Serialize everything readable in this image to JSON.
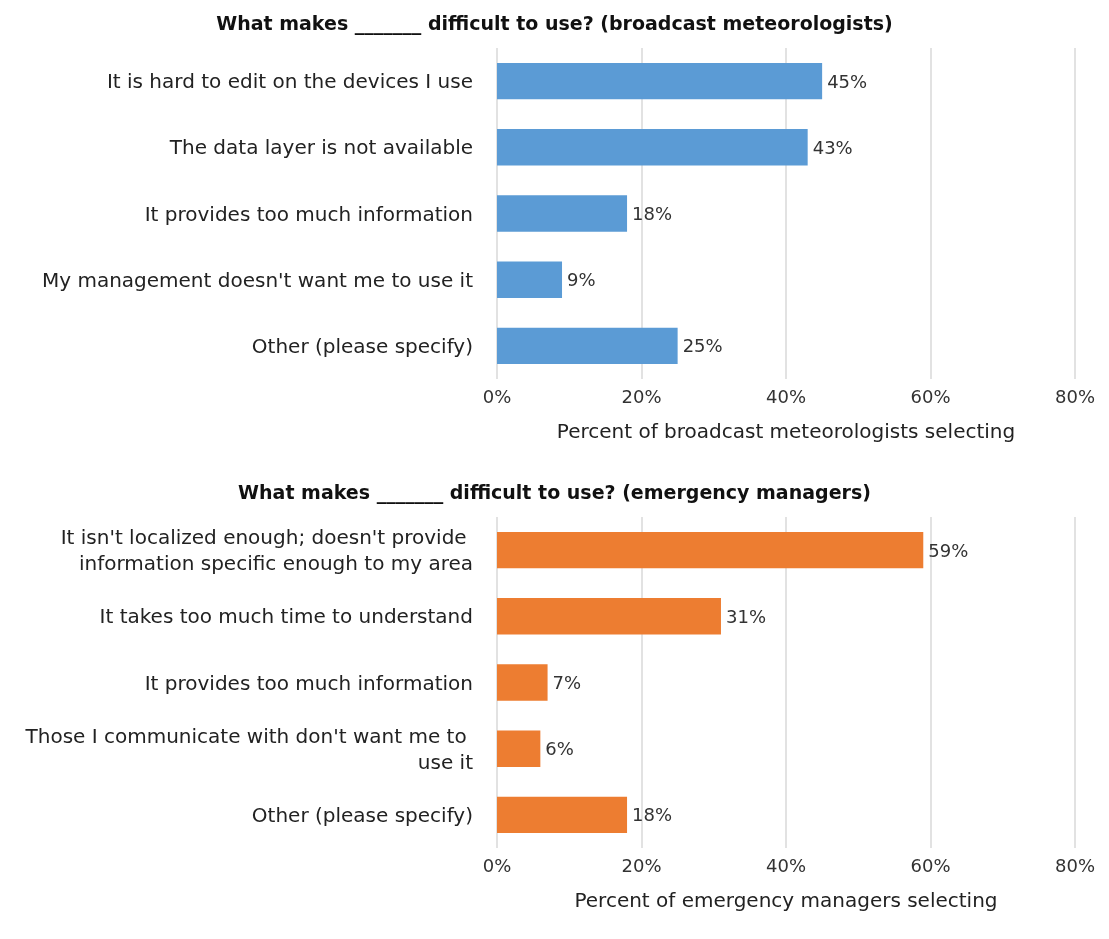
{
  "chart_data": [
    {
      "type": "bar",
      "orientation": "horizontal",
      "title": "What makes _______ difficult to use? (broadcast meteorologists)",
      "xlabel": "Percent of broadcast meteorologists selecting",
      "categories": [
        "It is hard to edit on the devices I use",
        "The data layer is not available",
        "It provides too much information",
        "My management doesn't want me to use it",
        "Other (please specify)"
      ],
      "values": [
        45,
        43,
        18,
        9,
        25
      ],
      "value_labels": [
        "45%",
        "43%",
        "18%",
        "9%",
        "25%"
      ],
      "color": "#5b9bd5",
      "xlim": [
        0,
        80
      ],
      "xticks": [
        {
          "value": 0,
          "label": "0%"
        },
        {
          "value": 20,
          "label": "20%"
        },
        {
          "value": 40,
          "label": "40%"
        },
        {
          "value": 60,
          "label": "60%"
        },
        {
          "value": 80,
          "label": "80%"
        }
      ],
      "grid": "x"
    },
    {
      "type": "bar",
      "orientation": "horizontal",
      "title": "What makes _______ difficult to use? (emergency managers)",
      "xlabel": "Percent of emergency managers selecting",
      "categories": [
        "It isn't localized enough; doesn't provide information specific enough to my area",
        "It takes too much time to understand",
        "It provides too much information",
        "Those I communicate with don't want me to use it",
        "Other (please specify)"
      ],
      "values": [
        59,
        31,
        7,
        6,
        18
      ],
      "value_labels": [
        "59%",
        "31%",
        "7%",
        "6%",
        "18%"
      ],
      "color": "#ed7d31",
      "xlim": [
        0,
        80
      ],
      "xticks": [
        {
          "value": 0,
          "label": "0%"
        },
        {
          "value": 20,
          "label": "20%"
        },
        {
          "value": 40,
          "label": "40%"
        },
        {
          "value": 60,
          "label": "60%"
        },
        {
          "value": 80,
          "label": "80%"
        }
      ],
      "grid": "x"
    }
  ]
}
